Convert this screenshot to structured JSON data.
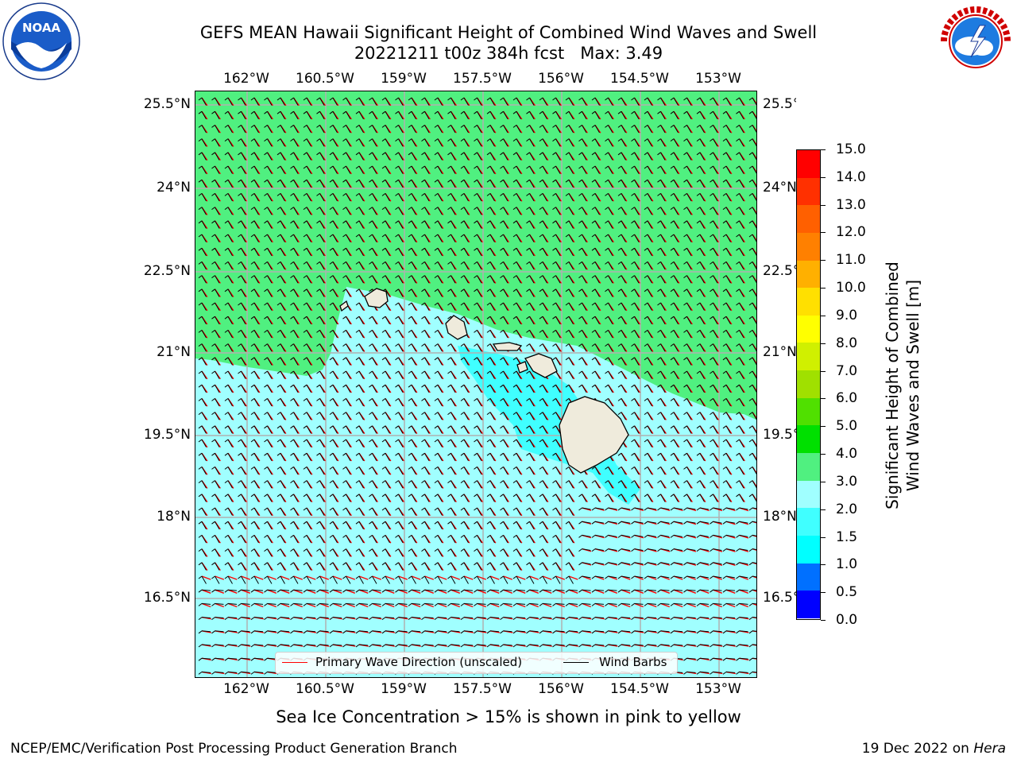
{
  "title": {
    "line1": "GEFS MEAN Hawaii Significant Height of Combined Wind Waves and Swell",
    "line2": "20221211 t00z 384h fcst   Max: 3.49"
  },
  "map": {
    "lon_labels": [
      "162°W",
      "160.5°W",
      "159°W",
      "157.5°W",
      "156°W",
      "154.5°W",
      "153°W"
    ],
    "lat_labels": [
      "25.5°N",
      "24°N",
      "22.5°N",
      "21°N",
      "19.5°N",
      "18°N",
      "16.5°N"
    ]
  },
  "colorbar": {
    "label": "Significant Height of Combined Wind Waves and Swell [m]",
    "label_line1": "Significant Height of Combined",
    "label_line2": "Wind Waves and Swell [m]",
    "ticks": [
      "0.0",
      "0.5",
      "1.0",
      "1.5",
      "2.0",
      "3.0",
      "4.0",
      "5.0",
      "6.0",
      "7.0",
      "8.0",
      "9.0",
      "10.0",
      "11.0",
      "12.0",
      "13.0",
      "14.0",
      "15.0"
    ],
    "colors": [
      "#0000ff",
      "#0070ff",
      "#00ffff",
      "#40ffff",
      "#a0ffff",
      "#50f080",
      "#00e000",
      "#50e000",
      "#a0e000",
      "#d0f000",
      "#ffff00",
      "#ffe000",
      "#ffb000",
      "#ff8000",
      "#ff6000",
      "#ff3000",
      "#ff0000"
    ]
  },
  "legend": {
    "wave_label": "Primary Wave Direction (unscaled)",
    "wave_color": "#ff0000",
    "barb_label": "Wind Barbs",
    "barb_color": "#000000"
  },
  "subtitle": "Sea Ice Concentration > 15% is shown in pink to yellow",
  "footer": {
    "left": "NCEP/EMC/Verification Post Processing Product Generation Branch",
    "right_date": "19 Dec 2022 on",
    "right_machine": "Hera"
  },
  "logos": {
    "left": "noaa-logo",
    "right": "nws-logo",
    "noaa_text": "NOAA",
    "nws_text": "NATIONAL WEATHER SERVICE"
  },
  "field_colors": {
    "high_band": "#50f080",
    "mid_band": "#a0ffff",
    "low_band": "#40ffff",
    "land": "#efebdc"
  }
}
